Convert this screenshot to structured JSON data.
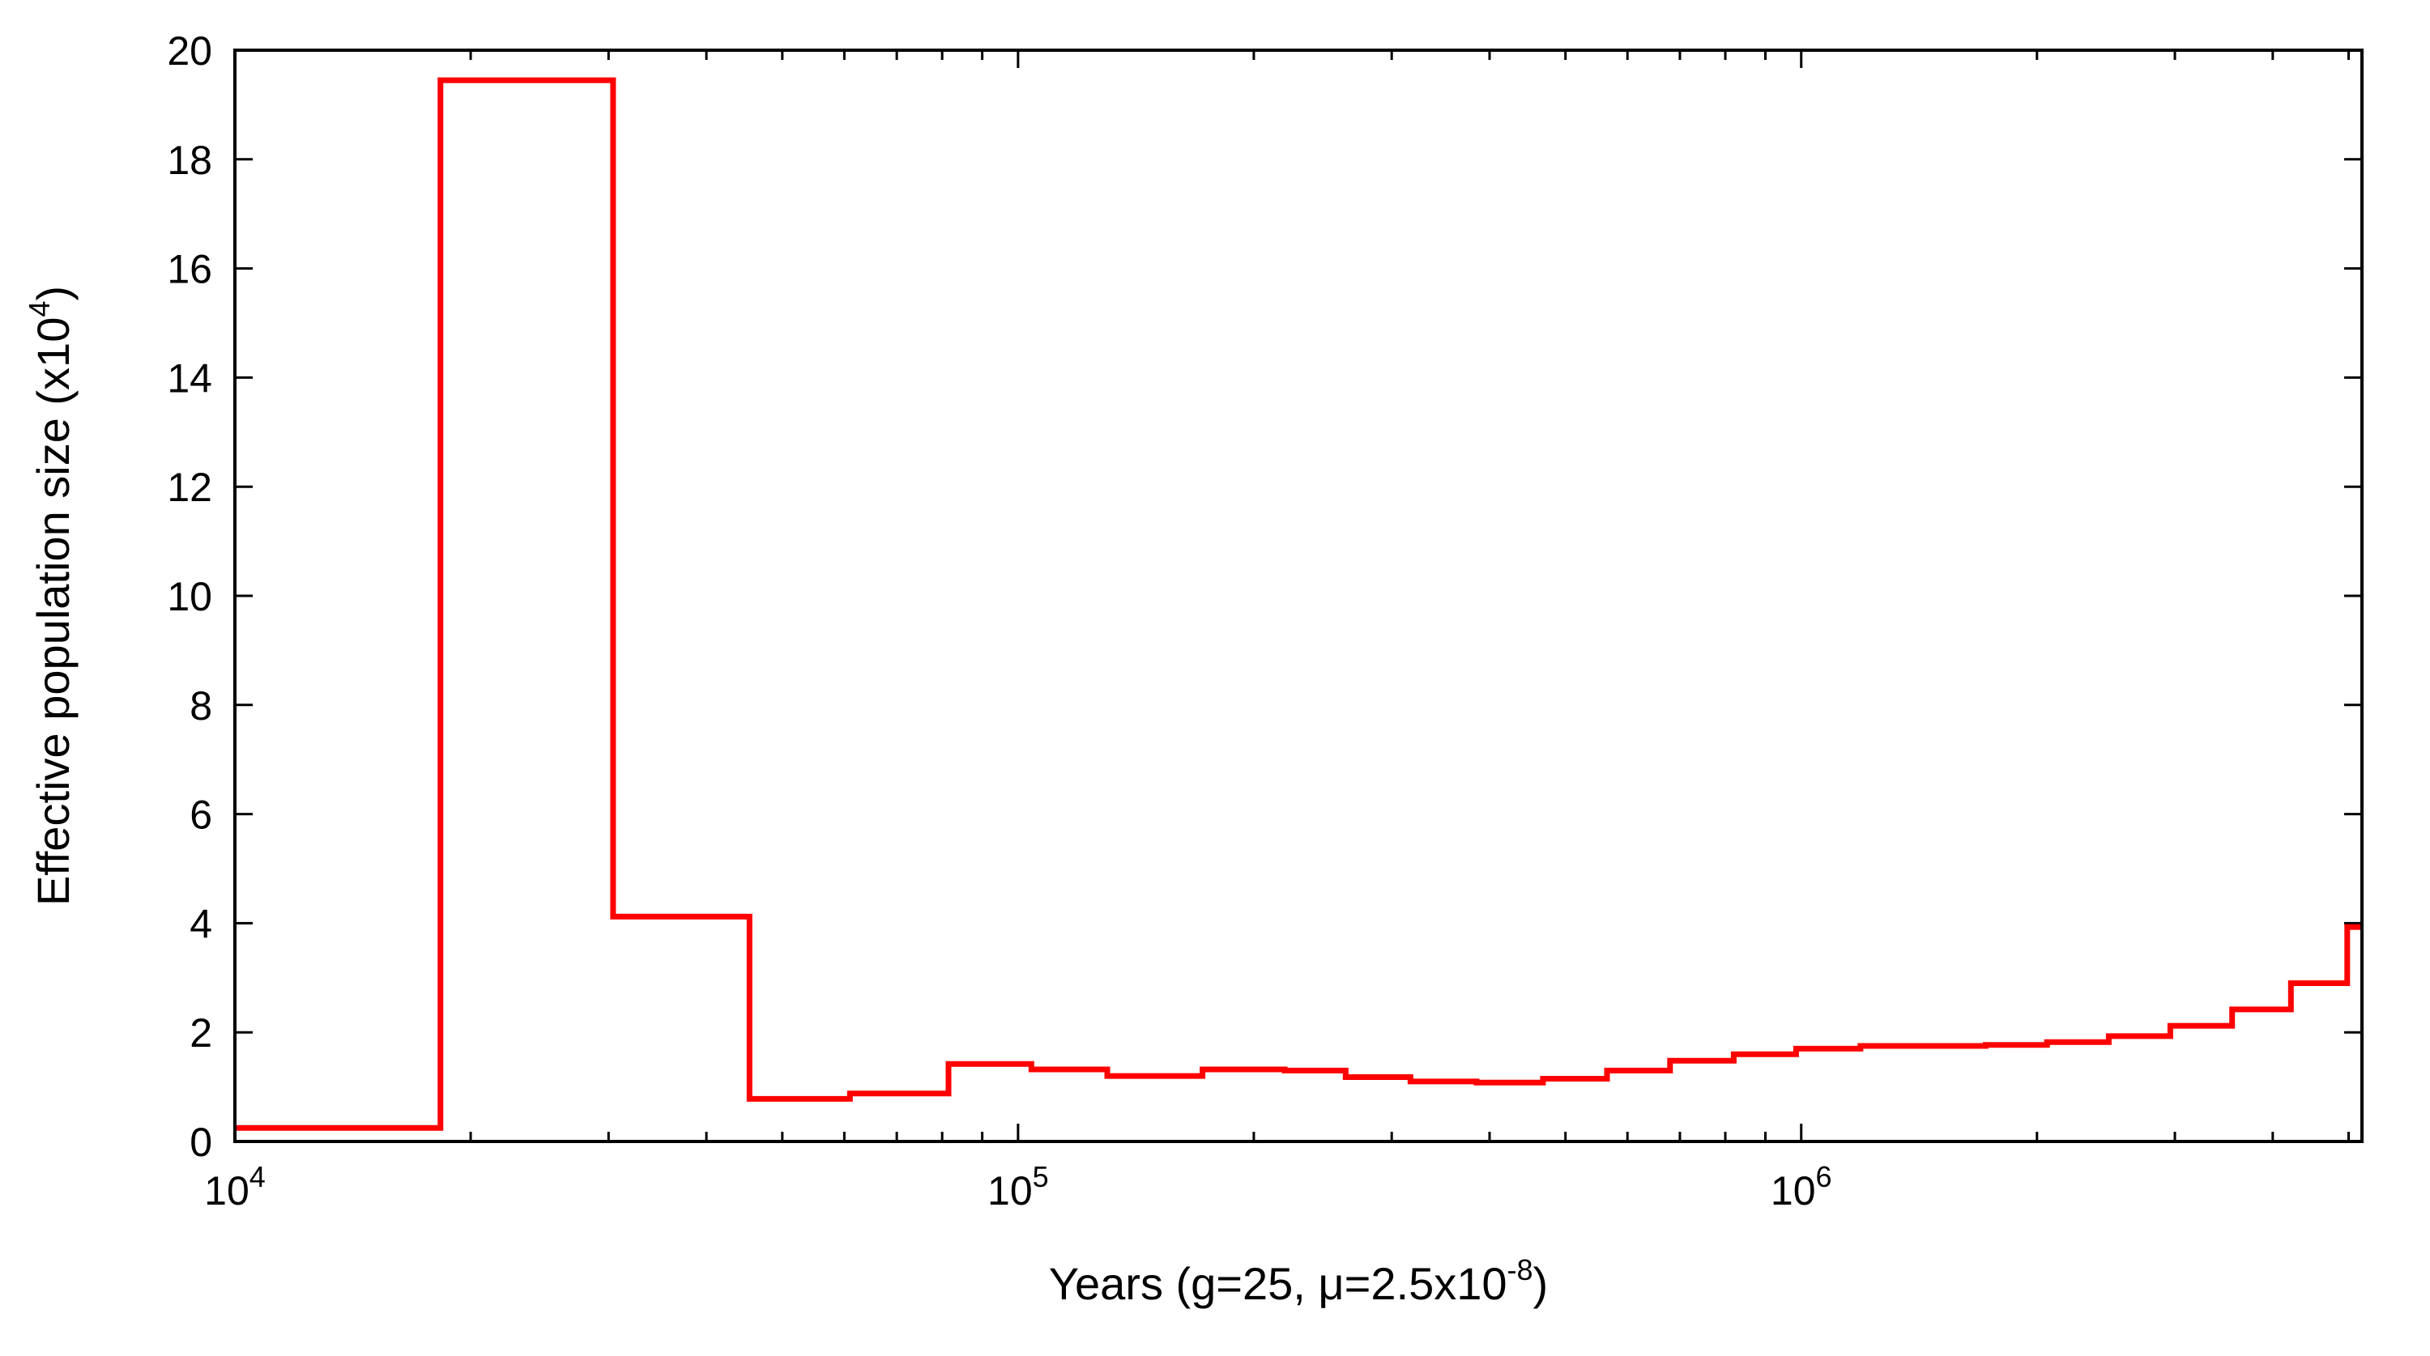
{
  "chart_data": {
    "type": "line",
    "step": true,
    "xscale": "log",
    "xlim": [
      10000,
      5200000
    ],
    "ylim": [
      0,
      20
    ],
    "grid": false,
    "legend": "none",
    "xlabel": "Years (g=25, μ=2.5x10",
    "xlabel_sup": "-8",
    "xlabel_suffix": ")",
    "ylabel": "Effective population size (x10",
    "ylabel_sup": "4",
    "ylabel_suffix": ")",
    "xticks": [
      {
        "value": 10000,
        "base": "10",
        "exp": "4"
      },
      {
        "value": 100000,
        "base": "10",
        "exp": "5"
      },
      {
        "value": 1000000,
        "base": "10",
        "exp": "6"
      }
    ],
    "yticks": [
      "0",
      "2",
      "4",
      "6",
      "8",
      "10",
      "12",
      "14",
      "16",
      "18",
      "20"
    ],
    "series": [
      {
        "color": "#ff0000",
        "points": [
          [
            10000,
            0.25
          ],
          [
            18300,
            0.25
          ],
          [
            18300,
            19.45
          ],
          [
            30400,
            19.45
          ],
          [
            30400,
            4.12
          ],
          [
            45400,
            4.12
          ],
          [
            45400,
            0.78
          ],
          [
            61000,
            0.78
          ],
          [
            61000,
            0.88
          ],
          [
            81500,
            0.88
          ],
          [
            81500,
            1.42
          ],
          [
            104000,
            1.42
          ],
          [
            104000,
            1.32
          ],
          [
            130000,
            1.32
          ],
          [
            130000,
            1.2
          ],
          [
            172000,
            1.2
          ],
          [
            172000,
            1.32
          ],
          [
            219000,
            1.32
          ],
          [
            219000,
            1.3
          ],
          [
            262000,
            1.3
          ],
          [
            262000,
            1.18
          ],
          [
            317000,
            1.18
          ],
          [
            317000,
            1.1
          ],
          [
            385000,
            1.1
          ],
          [
            385000,
            1.08
          ],
          [
            468000,
            1.08
          ],
          [
            468000,
            1.15
          ],
          [
            565000,
            1.15
          ],
          [
            565000,
            1.3
          ],
          [
            680000,
            1.3
          ],
          [
            680000,
            1.48
          ],
          [
            820000,
            1.48
          ],
          [
            820000,
            1.6
          ],
          [
            985000,
            1.6
          ],
          [
            985000,
            1.7
          ],
          [
            1190000,
            1.7
          ],
          [
            1190000,
            1.75
          ],
          [
            1430000,
            1.75
          ],
          [
            1430000,
            1.75
          ],
          [
            1720000,
            1.75
          ],
          [
            1720000,
            1.77
          ],
          [
            2060000,
            1.77
          ],
          [
            2060000,
            1.82
          ],
          [
            2470000,
            1.82
          ],
          [
            2470000,
            1.93
          ],
          [
            2960000,
            1.93
          ],
          [
            2960000,
            2.12
          ],
          [
            3550000,
            2.12
          ],
          [
            3550000,
            2.42
          ],
          [
            4220000,
            2.42
          ],
          [
            4220000,
            2.9
          ],
          [
            4980000,
            2.9
          ],
          [
            4980000,
            3.93
          ],
          [
            5200000,
            3.93
          ]
        ]
      }
    ]
  }
}
